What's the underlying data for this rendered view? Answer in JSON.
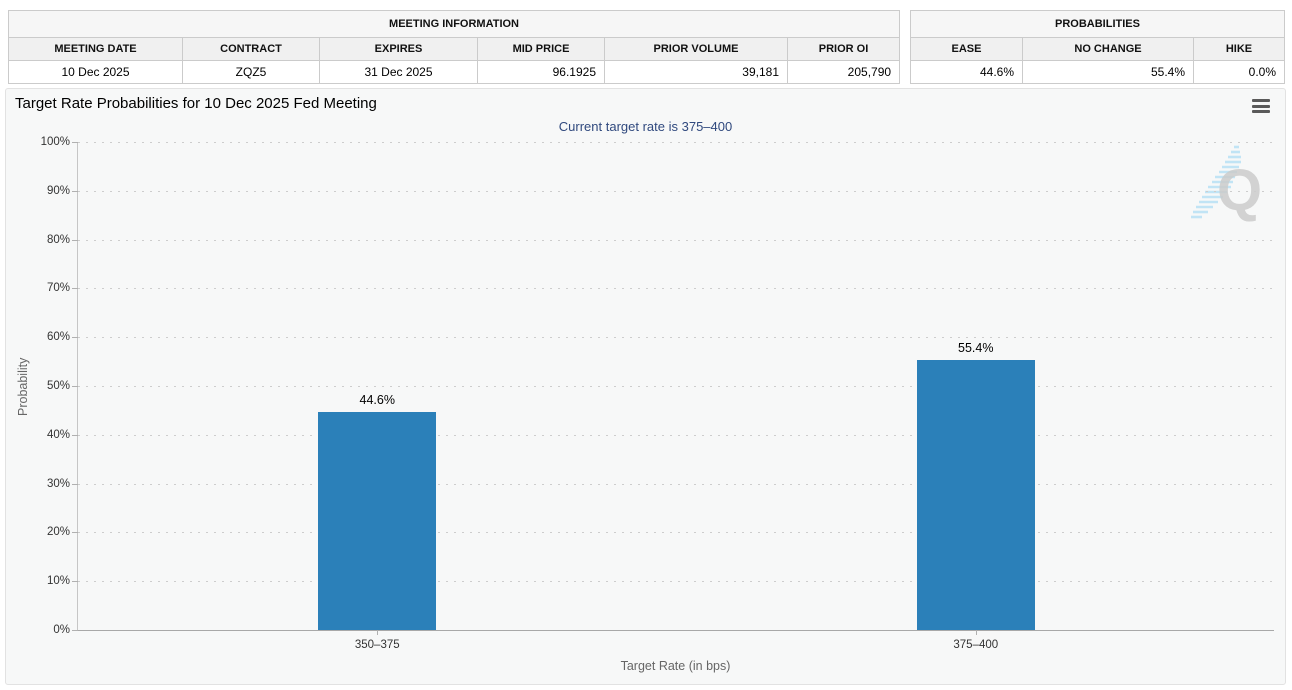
{
  "meeting_info": {
    "title": "MEETING INFORMATION",
    "columns": [
      "MEETING DATE",
      "CONTRACT",
      "EXPIRES",
      "MID PRICE",
      "PRIOR VOLUME",
      "PRIOR OI"
    ],
    "row": [
      "10 Dec 2025",
      "ZQZ5",
      "31 Dec 2025",
      "96.1925",
      "39,181",
      "205,790"
    ]
  },
  "probabilities": {
    "title": "PROBABILITIES",
    "columns": [
      "EASE",
      "NO CHANGE",
      "HIKE"
    ],
    "row": [
      "44.6%",
      "55.4%",
      "0.0%"
    ]
  },
  "chart_data": {
    "type": "bar",
    "title": "Target Rate Probabilities for 10 Dec 2025 Fed Meeting",
    "subtitle": "Current target rate is 375–400",
    "categories": [
      "350–375",
      "375–400"
    ],
    "values": [
      44.6,
      55.4
    ],
    "value_labels": [
      "44.6%",
      "55.4%"
    ],
    "xlabel": "Target Rate (in bps)",
    "ylabel": "Probability",
    "ylim": [
      0,
      100
    ],
    "ytick_step": 10,
    "ytick_labels": [
      "0%",
      "10%",
      "20%",
      "30%",
      "40%",
      "50%",
      "60%",
      "70%",
      "80%",
      "90%",
      "100%"
    ],
    "grid": "dotted-horizontal",
    "legend": "none",
    "bar_color": "#2b80b9"
  },
  "watermark": {
    "letter": "Q"
  }
}
